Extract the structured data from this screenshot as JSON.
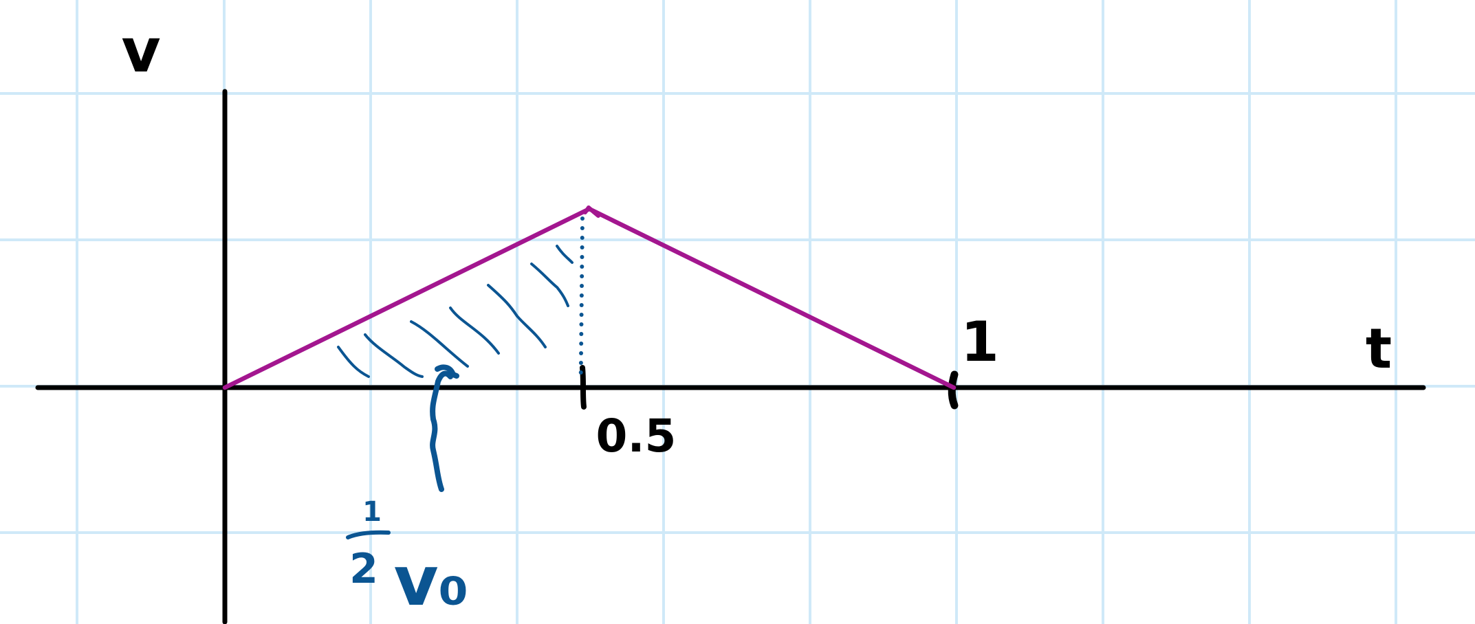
{
  "labels": {
    "y_axis": "v",
    "x_axis": "t",
    "tick_peak": "0.5",
    "tick_end": "1",
    "area_annotation": {
      "numerator": "1",
      "denominator": "2",
      "expression": "v₀"
    }
  },
  "colors": {
    "grid": "#cfe9f8",
    "axes": "#000000",
    "velocity_curve": "#a3168f",
    "annotation": "#0b5592"
  },
  "function": {
    "description_points_t_v": [
      [
        0,
        0
      ],
      [
        0.5,
        1
      ],
      [
        1,
        0
      ]
    ]
  },
  "shaded_region": {
    "t_from": 0,
    "t_to": 0.5,
    "style": "hatched"
  }
}
